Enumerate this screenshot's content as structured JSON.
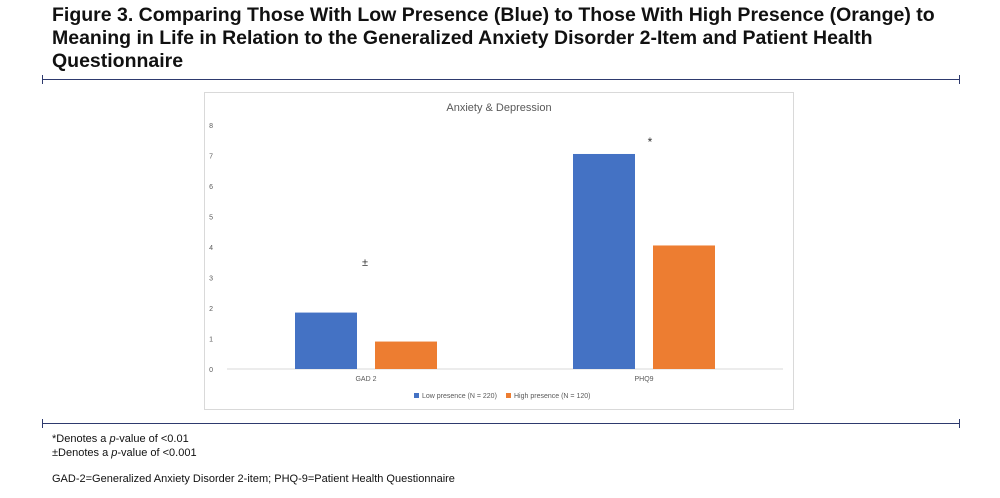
{
  "figure": {
    "title": "Figure 3. Comparing Those With Low Presence (Blue) to Those With High Presence (Orange) to Meaning in Life in Relation to the Generalized Anxiety Disorder 2-Item and Patient Health Questionnaire"
  },
  "chart_data": {
    "type": "bar",
    "title": "Anxiety & Depression",
    "categories": [
      "GAD 2",
      "PHQ9"
    ],
    "series": [
      {
        "name": "Low presence (N = 220)",
        "values": [
          1.85,
          7.05
        ],
        "color": "#4472c4"
      },
      {
        "name": "High presence (N = 120)",
        "values": [
          0.9,
          4.05
        ],
        "color": "#ed7d31"
      }
    ],
    "ylim": [
      0,
      8
    ],
    "yticks": [
      "0",
      "1",
      "2",
      "3",
      "4",
      "5",
      "6",
      "7",
      "8"
    ],
    "xlabel": "",
    "ylabel": "",
    "grid": false,
    "legend": "bottom",
    "annotations": [
      "±",
      "*"
    ]
  },
  "footnotes": {
    "star_prefix": "*Denotes a ",
    "dagger_prefix": "±Denotes a ",
    "p_italic": "p",
    "star_suffix": "-value of <0.01",
    "dagger_suffix": "-value of <0.001",
    "abbreviations": "GAD-2=Generalized Anxiety Disorder 2-item; PHQ-9=Patient Health Questionnaire"
  },
  "colors": {
    "rule": "#2e3a6e",
    "low_presence": "#4472c4",
    "high_presence": "#ed7d31"
  }
}
